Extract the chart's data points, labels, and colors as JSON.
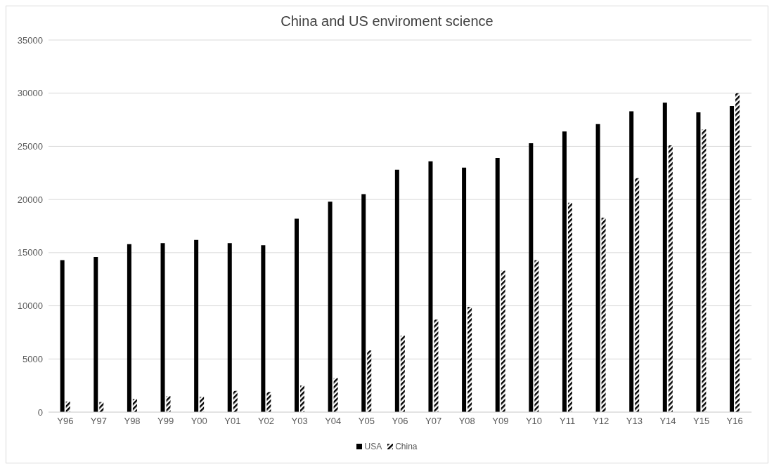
{
  "chart_data": {
    "type": "bar",
    "title": "China and US enviroment science",
    "categories": [
      "Y96",
      "Y97",
      "Y98",
      "Y99",
      "Y00",
      "Y01",
      "Y02",
      "Y03",
      "Y04",
      "Y05",
      "Y06",
      "Y07",
      "Y08",
      "Y09",
      "Y10",
      "Y11",
      "Y12",
      "Y13",
      "Y14",
      "Y15",
      "Y16"
    ],
    "series": [
      {
        "name": "USA",
        "color": "#000000",
        "values": [
          14300,
          14600,
          15800,
          15900,
          16200,
          15900,
          15700,
          18200,
          19800,
          20500,
          22800,
          23600,
          23000,
          23900,
          25300,
          26400,
          27100,
          28300,
          29100,
          28200,
          28800
        ]
      },
      {
        "name": "China",
        "color": "#000000",
        "values": [
          1000,
          950,
          1250,
          1500,
          1450,
          2000,
          1900,
          2500,
          3200,
          5800,
          7200,
          8700,
          9900,
          13300,
          14300,
          19700,
          18300,
          22000,
          25100,
          26600,
          30000
        ]
      }
    ],
    "ylim": [
      0,
      35000
    ],
    "yticks": [
      0,
      5000,
      10000,
      15000,
      20000,
      25000,
      30000,
      35000
    ],
    "grid": "y",
    "legend": "bottom"
  }
}
